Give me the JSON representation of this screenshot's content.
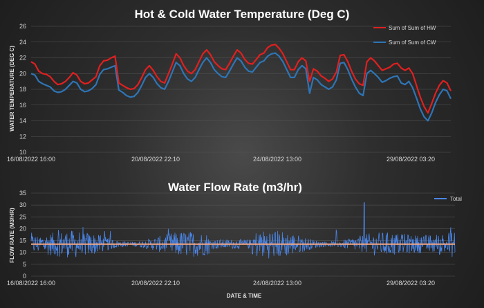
{
  "chart_data": [
    {
      "type": "line",
      "title": "Hot & Cold Water Temperature (Deg C)",
      "xlabel": "",
      "ylabel": "WATER TEMPERATURE (DEG C)",
      "ylim": [
        10,
        26
      ],
      "yticks": [
        10,
        12,
        14,
        16,
        18,
        20,
        22,
        24,
        26
      ],
      "xtick_labels": [
        "16/08/2022 16:00",
        "20/08/2022 22:10",
        "24/08/2022 13:00",
        "29/08/2022 03:20"
      ],
      "grid": true,
      "legend": "top-right",
      "series": [
        {
          "name": "Sum of Sum of HW",
          "color": "#e02020",
          "values": [
            21.5,
            21.2,
            20.3,
            20.0,
            19.9,
            19.6,
            19.0,
            18.6,
            18.7,
            19.0,
            19.5,
            20.1,
            19.8,
            19.0,
            18.7,
            18.8,
            19.2,
            19.6,
            21.0,
            21.6,
            21.7,
            22.0,
            22.2,
            18.8,
            18.5,
            18.2,
            18.0,
            18.1,
            18.6,
            19.5,
            20.5,
            21.0,
            20.4,
            19.6,
            19.0,
            18.8,
            20.0,
            21.2,
            22.5,
            22.0,
            21.0,
            20.3,
            20.0,
            20.5,
            21.5,
            22.5,
            23.0,
            22.4,
            21.5,
            21.0,
            20.6,
            20.5,
            21.3,
            22.2,
            23.0,
            22.6,
            21.8,
            21.3,
            21.2,
            21.8,
            22.4,
            22.6,
            23.3,
            23.6,
            23.7,
            23.2,
            22.5,
            21.5,
            20.5,
            20.5,
            21.5,
            22.0,
            21.6,
            19.0,
            20.6,
            20.3,
            19.7,
            19.4,
            19.0,
            19.3,
            20.2,
            22.3,
            22.4,
            21.5,
            20.3,
            19.3,
            18.7,
            18.5,
            21.5,
            22.0,
            21.6,
            21.0,
            20.4,
            20.6,
            20.8,
            21.2,
            21.3,
            20.7,
            20.4,
            20.7,
            20.0,
            18.5,
            17.0,
            15.8,
            15.0,
            16.2,
            17.5,
            18.5,
            19.1,
            18.8,
            17.8
          ],
          "values_note": ""
        },
        {
          "name": "Sum of Sum of CW",
          "color": "#2e75b6",
          "values": [
            20.0,
            19.8,
            19.0,
            18.7,
            18.5,
            18.3,
            17.8,
            17.6,
            17.7,
            18.0,
            18.5,
            19.0,
            18.8,
            18.0,
            17.7,
            17.8,
            18.1,
            18.6,
            19.9,
            20.5,
            20.6,
            20.8,
            21.0,
            17.9,
            17.6,
            17.2,
            17.0,
            17.1,
            17.6,
            18.5,
            19.5,
            20.0,
            19.5,
            18.7,
            18.2,
            18.0,
            19.0,
            20.2,
            21.4,
            21.0,
            20.0,
            19.3,
            19.0,
            19.5,
            20.5,
            21.4,
            22.0,
            21.4,
            20.5,
            20.0,
            19.6,
            19.5,
            20.3,
            21.2,
            22.0,
            21.6,
            20.8,
            20.3,
            20.2,
            20.8,
            21.4,
            21.6,
            22.2,
            22.5,
            22.6,
            22.2,
            21.5,
            20.5,
            19.5,
            19.5,
            20.5,
            21.0,
            20.6,
            17.5,
            19.5,
            19.2,
            18.6,
            18.3,
            18.0,
            18.3,
            19.2,
            21.3,
            21.4,
            20.5,
            19.3,
            18.3,
            17.5,
            17.2,
            20.0,
            20.4,
            20.0,
            19.5,
            18.9,
            19.1,
            19.4,
            19.6,
            19.7,
            18.8,
            18.6,
            19.0,
            18.2,
            16.9,
            15.5,
            14.5,
            14.0,
            15.0,
            16.3,
            17.3,
            18.0,
            17.8,
            16.8
          ]
        }
      ]
    },
    {
      "type": "line",
      "title": "Water Flow Rate (m3/hr)",
      "xlabel": "DATE & TIME",
      "ylabel": "FLOW RATE (M3/HR)",
      "ylim": [
        0,
        35
      ],
      "yticks": [
        0,
        5,
        10,
        15,
        20,
        25,
        30,
        35
      ],
      "xtick_labels": [
        "16/08/2022 16:00",
        "20/08/2022 22:10",
        "24/08/2022 13:00",
        "29/08/2022 03:20"
      ],
      "grid": true,
      "legend": "top-right",
      "series": [
        {
          "name": "Total",
          "color": "#4a86e8",
          "mean": 13.5,
          "range": [
            6,
            31
          ],
          "peak": 31,
          "values_note": ""
        }
      ],
      "reference_line": {
        "value": 13.5,
        "color": "#f4a582"
      }
    }
  ]
}
